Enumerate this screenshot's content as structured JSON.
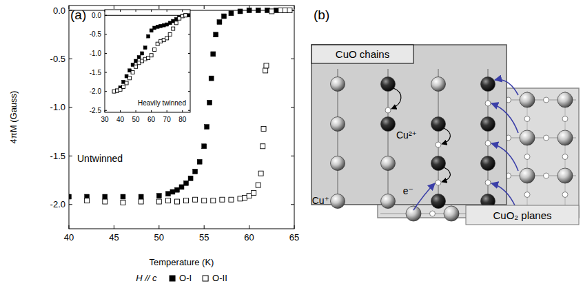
{
  "chart_data": [
    {
      "type": "scatter",
      "panel_label": "(a)",
      "x_label": "Temperature (K)",
      "y_label": "4πM (Gauss)",
      "annotations": [
        "Untwinned"
      ],
      "legend_title": "H // c",
      "legend": "bottom",
      "xlim": [
        40,
        65
      ],
      "xticks": [
        40,
        45,
        50,
        55,
        60,
        65
      ],
      "ylim": [
        -2.25,
        0.05
      ],
      "yticks": [
        {
          "value": 0,
          "label": "0.0"
        },
        {
          "value": -0.5,
          "label": "-0.5"
        },
        {
          "value": -1,
          "label": "-1.0"
        },
        {
          "value": -1.5,
          "label": "-1.5"
        },
        {
          "value": -2,
          "label": "-2.0"
        }
      ],
      "reference_lines": [
        0
      ],
      "series": [
        {
          "name": "O-I",
          "color": "#000000",
          "marker": "square",
          "x": [
            40,
            42,
            44,
            46,
            48,
            50,
            51,
            51.5,
            52,
            52.5,
            53,
            53.5,
            54,
            54.5,
            55,
            55.3,
            55.6,
            55.8,
            56,
            56.3,
            56.7,
            57.2,
            58,
            59,
            60,
            61,
            62,
            63,
            64
          ],
          "values": [
            -1.92,
            -1.92,
            -1.92,
            -1.92,
            -1.92,
            -1.91,
            -1.89,
            -1.87,
            -1.85,
            -1.82,
            -1.78,
            -1.73,
            -1.66,
            -1.56,
            -1.4,
            -1.2,
            -0.95,
            -0.7,
            -0.45,
            -0.25,
            -0.12,
            -0.06,
            -0.03,
            -0.01,
            0,
            0,
            0,
            0,
            0
          ]
        },
        {
          "name": "O-II",
          "color": "#000000",
          "marker": "hollow-square",
          "x": [
            42,
            44,
            46,
            48,
            50,
            51,
            52,
            53,
            54,
            55,
            56,
            57,
            58,
            59,
            59.5,
            60,
            60.5,
            61,
            61.3,
            61.5,
            61.6,
            61.8,
            61.9,
            62.5,
            63.5,
            64,
            64.5
          ],
          "values": [
            -1.96,
            -1.97,
            -1.98,
            -1.97,
            -1.97,
            -1.96,
            -1.97,
            -1.96,
            -1.95,
            -1.96,
            -1.96,
            -1.95,
            -1.95,
            -1.94,
            -1.93,
            -1.91,
            -1.88,
            -1.8,
            -1.68,
            -1.4,
            -1.22,
            -0.62,
            -0.57,
            -0.01,
            0,
            0,
            0
          ]
        }
      ]
    },
    {
      "type": "scatter",
      "annotations": [
        "Heavily twinned"
      ],
      "xlim": [
        30,
        85
      ],
      "xticks": [
        30,
        40,
        50,
        60,
        70,
        80
      ],
      "ylim": [
        -2.55,
        0.15
      ],
      "yticks": [
        {
          "value": 0,
          "label": "0.0"
        },
        {
          "value": -0.5,
          "label": "-0.5"
        },
        {
          "value": -1,
          "label": "-1.0"
        },
        {
          "value": -1.5,
          "label": "-1.5"
        },
        {
          "value": -2,
          "label": "-2.0"
        },
        {
          "value": -2.5,
          "label": "-2.5"
        }
      ],
      "reference_lines": [
        0
      ],
      "series": [
        {
          "color": "#000000",
          "marker": "square",
          "x": [
            38,
            40,
            42,
            44,
            46,
            48,
            50,
            52,
            54,
            56,
            58,
            60,
            62,
            64,
            66,
            68,
            70,
            72,
            74,
            76,
            78,
            80,
            82,
            84
          ],
          "values": [
            -1.98,
            -1.9,
            -1.75,
            -1.6,
            -1.45,
            -1.3,
            -1.2,
            -1.1,
            -1.0,
            -0.85,
            -0.55,
            -0.4,
            -0.33,
            -0.3,
            -0.28,
            -0.26,
            -0.24,
            -0.2,
            -0.15,
            -0.1,
            -0.05,
            -0.01,
            0,
            0
          ]
        },
        {
          "color": "#000000",
          "marker": "hollow-square",
          "x": [
            36,
            38,
            40,
            42,
            44,
            46,
            48,
            50,
            52,
            54,
            56,
            58,
            60,
            62,
            64,
            66,
            68,
            70,
            72,
            74,
            76,
            78,
            80,
            82
          ],
          "values": [
            -2.0,
            -1.98,
            -1.95,
            -1.88,
            -1.78,
            -1.65,
            -1.5,
            -1.35,
            -1.25,
            -1.2,
            -1.15,
            -1.12,
            -1.05,
            -0.9,
            -0.75,
            -0.68,
            -0.65,
            -0.6,
            -0.5,
            -0.35,
            -0.2,
            -0.08,
            -0.02,
            0
          ]
        }
      ]
    }
  ],
  "diagram": {
    "panel_label": "(b)",
    "chains_label": "CuO chains",
    "planes_label": "CuO₂ planes",
    "cu2_label": "Cu²⁺",
    "cu1_label": "Cu⁺",
    "electron_label": "e⁻"
  }
}
